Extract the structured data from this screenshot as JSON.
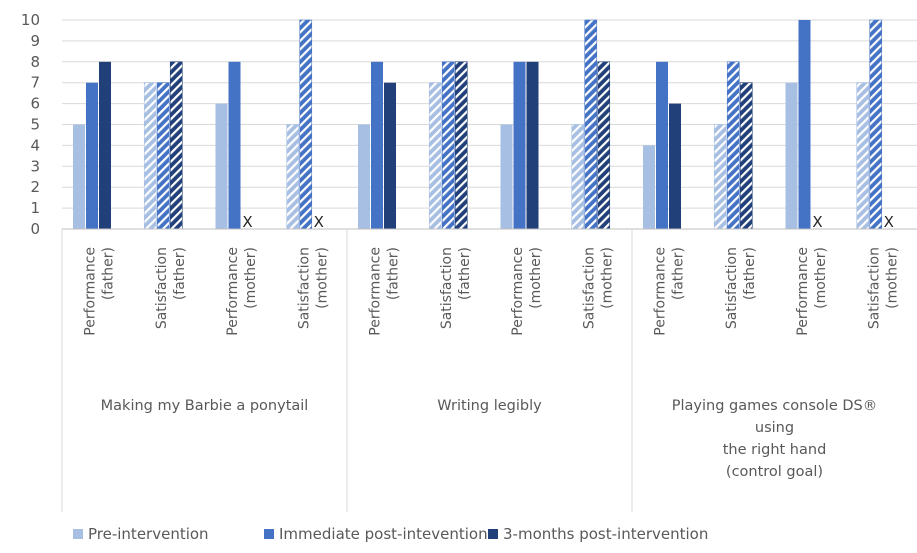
{
  "chart_data": {
    "type": "bar",
    "ylim": [
      0,
      10
    ],
    "yticks": [
      0,
      1,
      2,
      3,
      4,
      5,
      6,
      7,
      8,
      9,
      10
    ],
    "grid": true,
    "legend_position": "bottom",
    "groups": [
      {
        "label_lines": [
          "Making my Barbie a ponytail"
        ],
        "categories": [
          {
            "lines": [
              "Performance",
              "(father)"
            ],
            "values": [
              5,
              7,
              8
            ],
            "pattern": "solid"
          },
          {
            "lines": [
              "Satisfaction",
              "(father)"
            ],
            "values": [
              7,
              7,
              8
            ],
            "pattern": "hatched"
          },
          {
            "lines": [
              "Performance",
              "(mother)"
            ],
            "values": [
              6,
              8,
              null
            ],
            "pattern": "solid"
          },
          {
            "lines": [
              "Satisfaction",
              "(mother)"
            ],
            "values": [
              5,
              10,
              null
            ],
            "pattern": "hatched"
          }
        ]
      },
      {
        "label_lines": [
          "Writing legibly"
        ],
        "categories": [
          {
            "lines": [
              "Performance",
              "(father)"
            ],
            "values": [
              5,
              8,
              7
            ],
            "pattern": "solid"
          },
          {
            "lines": [
              "Satisfaction",
              "(father)"
            ],
            "values": [
              7,
              8,
              8
            ],
            "pattern": "hatched"
          },
          {
            "lines": [
              "Performance",
              "(mother)"
            ],
            "values": [
              5,
              8,
              8
            ],
            "pattern": "solid"
          },
          {
            "lines": [
              "Satisfaction",
              "(mother)"
            ],
            "values": [
              5,
              10,
              8
            ],
            "pattern": "hatched"
          }
        ]
      },
      {
        "label_lines": [
          "Playing games console DS®",
          "using",
          "the right hand",
          "(control goal)"
        ],
        "categories": [
          {
            "lines": [
              "Performance",
              "(father)"
            ],
            "values": [
              4,
              8,
              6
            ],
            "pattern": "solid"
          },
          {
            "lines": [
              "Satisfaction",
              "(father)"
            ],
            "values": [
              5,
              8,
              7
            ],
            "pattern": "hatched"
          },
          {
            "lines": [
              "Performance",
              "(mother)"
            ],
            "values": [
              7,
              10,
              null
            ],
            "pattern": "solid"
          },
          {
            "lines": [
              "Satisfaction",
              "(mother)"
            ],
            "values": [
              7,
              10,
              null
            ],
            "pattern": "hatched"
          }
        ]
      }
    ],
    "series": [
      {
        "name": "Pre-intervention",
        "color": "#a7bfe3"
      },
      {
        "name": "Immediate post-intevention",
        "color": "#4472c4"
      },
      {
        "name": "3-months post-intervention",
        "color": "#213f78"
      }
    ],
    "missing_marker": "X"
  }
}
